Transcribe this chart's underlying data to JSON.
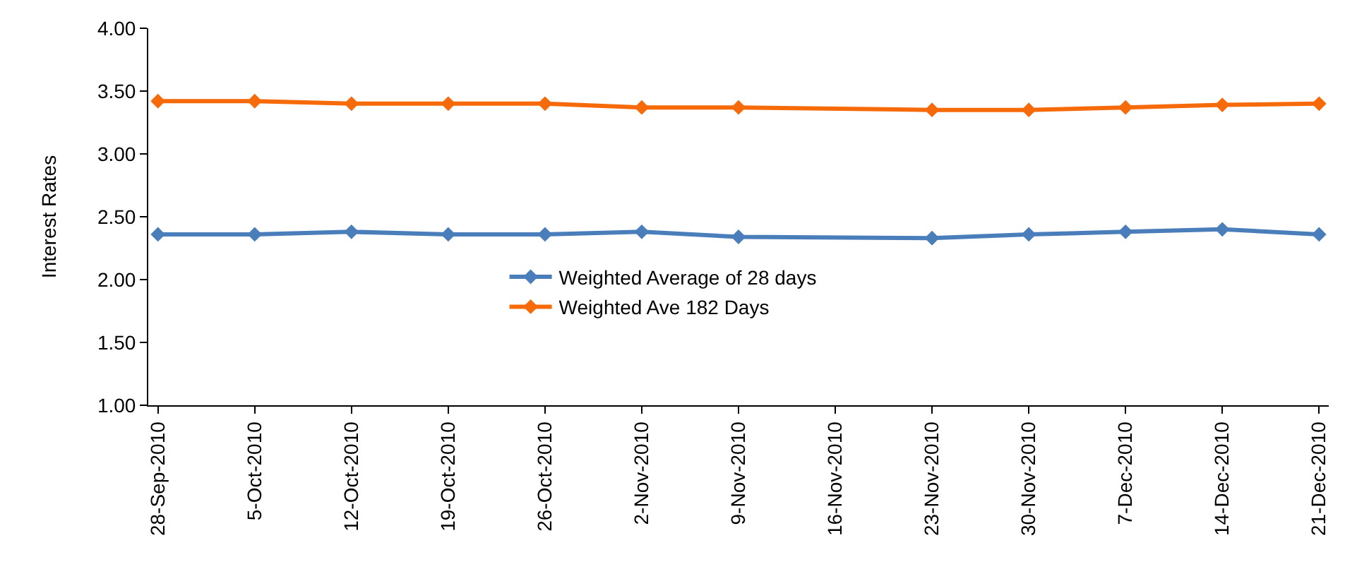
{
  "chart_data": {
    "type": "line",
    "ylabel": "Interest Rates",
    "categories": [
      "28-Sep-2010",
      "5-Oct-2010",
      "12-Oct-2010",
      "19-Oct-2010",
      "26-Oct-2010",
      "2-Nov-2010",
      "9-Nov-2010",
      "16-Nov-2010",
      "23-Nov-2010",
      "30-Nov-2010",
      "7-Dec-2010",
      "14-Dec-2010",
      "21-Dec-2010"
    ],
    "series": [
      {
        "name": "Weighted Average of 28 days",
        "color": "#4a7ebb",
        "values": [
          2.36,
          2.36,
          2.38,
          2.36,
          2.36,
          2.38,
          2.34,
          null,
          2.33,
          2.36,
          2.38,
          2.4,
          2.36
        ]
      },
      {
        "name": "Weighted Ave 182 Days",
        "color": "#f66a0a",
        "values": [
          3.42,
          3.42,
          3.4,
          3.4,
          3.4,
          3.37,
          3.37,
          null,
          3.35,
          3.35,
          3.37,
          3.39,
          3.4
        ]
      }
    ],
    "ylim": [
      1,
      4
    ],
    "yticks": [
      {
        "value": 1,
        "label": "1.00"
      },
      {
        "value": 1.5,
        "label": "1.50"
      },
      {
        "value": 2,
        "label": "2.00"
      },
      {
        "value": 2.5,
        "label": "2.50"
      },
      {
        "value": 3,
        "label": "3.00"
      },
      {
        "value": 3.5,
        "label": "3.50"
      },
      {
        "value": 4,
        "label": "4.00"
      }
    ],
    "grid": false,
    "legend": "center",
    "marker": "diamond",
    "line_style": "solid"
  }
}
